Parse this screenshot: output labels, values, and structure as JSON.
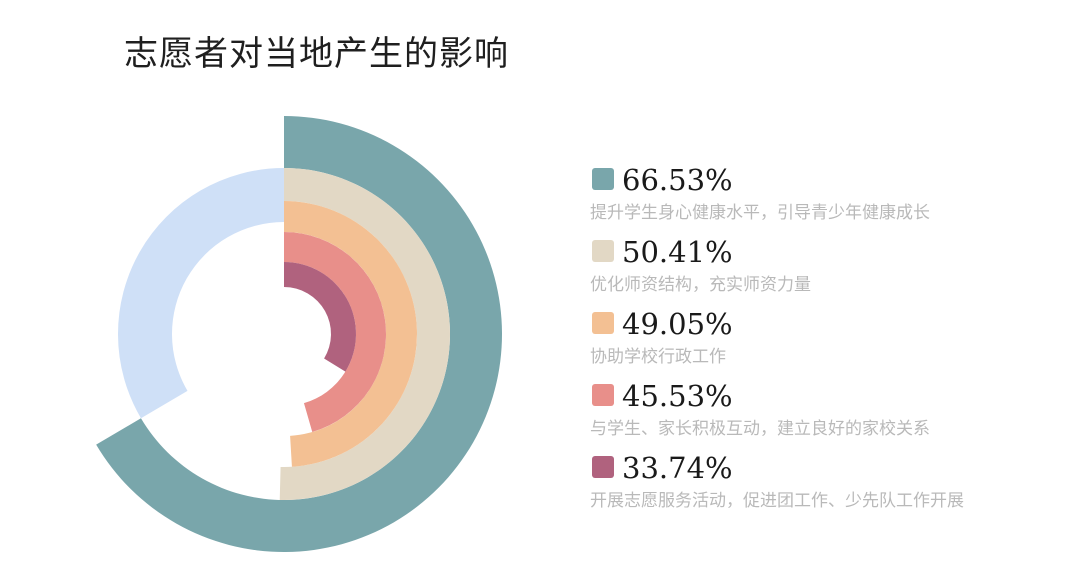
{
  "title": "志愿者对当地产生的影响",
  "chart_data": {
    "type": "radial-bar",
    "title": "志愿者对当地产生的影响",
    "series": [
      {
        "label": "66.53%",
        "value": 66.53,
        "desc": "提升学生身心健康水平，引导青少年健康成长",
        "color": "#79a6ab"
      },
      {
        "label": "50.41%",
        "value": 50.41,
        "desc": "优化师资结构，充实师资力量",
        "color": "#e2d8c5"
      },
      {
        "label": "49.05%",
        "value": 49.05,
        "desc": "协助学校行政工作",
        "color": "#f3c093"
      },
      {
        "label": "45.53%",
        "value": 45.53,
        "desc": "与学生、家长积极互动，建立良好的家校关系",
        "color": "#e88f8a"
      },
      {
        "label": "33.74%",
        "value": 33.74,
        "desc": "开展志愿服务活动，促进团工作、少先队工作开展",
        "color": "#b0627e"
      }
    ],
    "background_ring_color": "#cfe0f7"
  }
}
